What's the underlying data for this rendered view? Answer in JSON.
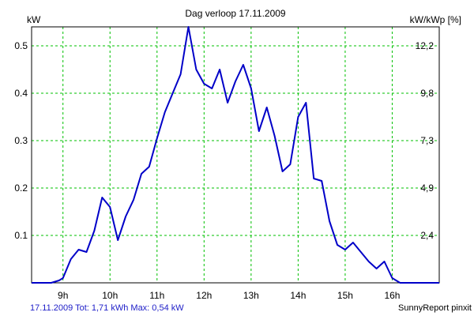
{
  "chart_data": {
    "type": "line",
    "title": "Dag  verloop 17.11.2009",
    "ylabel_left": "kW",
    "ylabel_right": "kW/kWp [%]",
    "ylim": [
      0,
      0.54
    ],
    "xlim": [
      8.333,
      17.0
    ],
    "y_ticks_left": [
      {
        "value": 0.1,
        "label": "0.1"
      },
      {
        "value": 0.2,
        "label": "0.2"
      },
      {
        "value": 0.3,
        "label": "0.3"
      },
      {
        "value": 0.4,
        "label": "0.4"
      },
      {
        "value": 0.5,
        "label": "0.5"
      }
    ],
    "y_ticks_right": [
      {
        "value": 0.1,
        "label": "2,4"
      },
      {
        "value": 0.2,
        "label": "4,9"
      },
      {
        "value": 0.3,
        "label": "7,3"
      },
      {
        "value": 0.4,
        "label": "9,8"
      },
      {
        "value": 0.5,
        "label": "12,2"
      }
    ],
    "x_ticks": [
      {
        "value": 9,
        "label": "9h"
      },
      {
        "value": 10,
        "label": "10h"
      },
      {
        "value": 11,
        "label": "11h"
      },
      {
        "value": 12,
        "label": "12h"
      },
      {
        "value": 13,
        "label": "13h"
      },
      {
        "value": 14,
        "label": "14h"
      },
      {
        "value": 15,
        "label": "15h"
      },
      {
        "value": 16,
        "label": "16h"
      }
    ],
    "grid": true,
    "series": [
      {
        "color": "#0000c8",
        "x": [
          8.333,
          8.75,
          8.917,
          9.0,
          9.167,
          9.333,
          9.5,
          9.667,
          9.833,
          10.0,
          10.167,
          10.333,
          10.5,
          10.667,
          10.833,
          11.0,
          11.167,
          11.333,
          11.5,
          11.667,
          11.833,
          12.0,
          12.167,
          12.333,
          12.5,
          12.667,
          12.833,
          13.0,
          13.167,
          13.333,
          13.5,
          13.667,
          13.833,
          14.0,
          14.167,
          14.333,
          14.5,
          14.667,
          14.833,
          15.0,
          15.167,
          15.333,
          15.5,
          15.667,
          15.833,
          16.0,
          16.167,
          16.333,
          16.5,
          17.0
        ],
        "y": [
          0.0,
          0.0,
          0.005,
          0.01,
          0.05,
          0.07,
          0.065,
          0.11,
          0.18,
          0.16,
          0.09,
          0.14,
          0.175,
          0.23,
          0.245,
          0.305,
          0.36,
          0.4,
          0.44,
          0.54,
          0.45,
          0.42,
          0.41,
          0.45,
          0.38,
          0.425,
          0.46,
          0.41,
          0.32,
          0.37,
          0.31,
          0.235,
          0.25,
          0.35,
          0.38,
          0.22,
          0.215,
          0.13,
          0.08,
          0.07,
          0.085,
          0.065,
          0.045,
          0.03,
          0.045,
          0.01,
          0.0,
          0.0,
          0.0,
          0.0
        ]
      }
    ]
  },
  "footer": {
    "summary": "17.11.2009 Tot: 1,71 kWh Max: 0,54 kW",
    "brand": "SunnyReport pinxit"
  }
}
